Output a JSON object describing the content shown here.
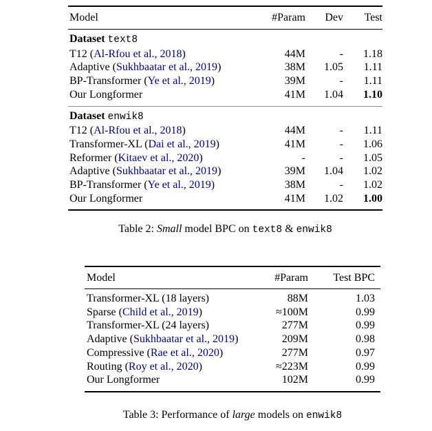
{
  "colors": {
    "citation": "#00008B",
    "rule": "#000000",
    "section_rule": "#8f8f8f"
  },
  "table2": {
    "headers": {
      "model": "Model",
      "param": "#Param",
      "dev": "Dev",
      "test": "Test"
    },
    "sections": [
      {
        "label": "Dataset",
        "dataset": "text8",
        "rows": [
          {
            "pre": "T12 (",
            "cite": "Al-Rfou et al., 2018",
            "post": ")",
            "param": "44M",
            "dev": "-",
            "test": "1.18"
          },
          {
            "pre": "Adaptive (",
            "cite": "Sukhbaatar et al., 2019",
            "post": ")",
            "param": "38M",
            "dev": "1.05",
            "test": "1.11"
          },
          {
            "pre": "BP-Transformer (",
            "cite": "Ye et al., 2019",
            "post": ")",
            "param": "39M",
            "dev": "-",
            "test": "1.11"
          },
          {
            "pre": "Our Longformer",
            "cite": "",
            "post": "",
            "param": "41M",
            "dev": "1.04",
            "test": "1.10"
          }
        ]
      },
      {
        "label": "Dataset",
        "dataset": "enwik8",
        "rows": [
          {
            "pre": "T12 (",
            "cite": "Al-Rfou et al., 2018",
            "post": ")",
            "param": "44M",
            "dev": "-",
            "test": "1.11"
          },
          {
            "pre": "Transformer-XL (",
            "cite": "Dai et al., 2019",
            "post": ")",
            "param": "41M",
            "dev": "-",
            "test": "1.06"
          },
          {
            "pre": "Reformer (",
            "cite": "Kitaev et al., 2020",
            "post": ")",
            "param": "-",
            "dev": "-",
            "test": "1.05"
          },
          {
            "pre": "Adaptive (",
            "cite": "Sukhbaatar et al., 2019",
            "post": ")",
            "param": "39M",
            "dev": "1.04",
            "test": "1.02"
          },
          {
            "pre": "BP-Transformer (",
            "cite": "Ye et al., 2019",
            "post": ")",
            "param": "38M",
            "dev": "-",
            "test": "1.02"
          },
          {
            "pre": "Our Longformer",
            "cite": "",
            "post": "",
            "param": "41M",
            "dev": "1.02",
            "test": "1.00"
          }
        ]
      }
    ],
    "caption": {
      "prefix": "Table 2: ",
      "italic": "Small",
      "middle": " model BPC on ",
      "mono1": "text8",
      "amp": " & ",
      "mono2": "enwik8"
    }
  },
  "table3": {
    "headers": {
      "model": "Model",
      "param": "#Param",
      "test": "Test BPC"
    },
    "rows": [
      {
        "pre": "Transformer-XL (18 layers)",
        "cite": "",
        "post": "",
        "param": "88M",
        "test": "1.03"
      },
      {
        "pre": "Sparse (",
        "cite": "Child et al., 2019",
        "post": ")",
        "param": "≈100M",
        "test": "0.99"
      },
      {
        "pre": "Transformer-XL (24 layers)",
        "cite": "",
        "post": "",
        "param": "277M",
        "test": "0.99"
      },
      {
        "pre": "Adaptive (",
        "cite": "Sukhbaatar et al., 2019",
        "post": ")",
        "param": "209M",
        "test": "0.98"
      },
      {
        "pre": "Compressive (",
        "cite": "Rae et al., 2020",
        "post": ")",
        "param": "277M",
        "test": "0.97"
      },
      {
        "pre": "Routing (",
        "cite": "Roy et al., 2020",
        "post": ")",
        "param": "≈223M",
        "test": "0.99"
      },
      {
        "pre": "Our Longformer",
        "cite": "",
        "post": "",
        "param": "102M",
        "test": "0.99"
      }
    ],
    "caption": {
      "prefix": "Table 3: Performance of ",
      "italic": "large",
      "middle": " models on ",
      "mono": "enwik8"
    }
  }
}
